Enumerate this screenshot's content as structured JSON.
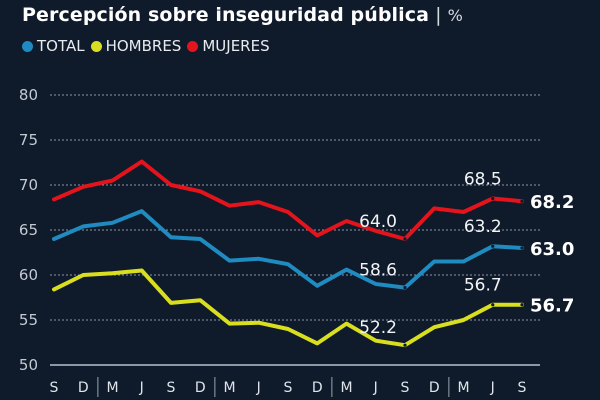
{
  "chart_data": {
    "type": "line",
    "title": "Percepción sobre inseguridad pública",
    "title_separator": "|",
    "unit": "%",
    "xlabel": "",
    "ylabel": "",
    "ylim": [
      50,
      80
    ],
    "yticks": [
      50,
      55,
      60,
      65,
      70,
      75,
      80
    ],
    "grid": true,
    "legend_position": "top-left",
    "categories": [
      "S",
      "D",
      "M",
      "J",
      "S",
      "D",
      "M",
      "J",
      "S",
      "D",
      "M",
      "J",
      "S",
      "D",
      "M",
      "J",
      "S"
    ],
    "year_separators_before_index": [
      2,
      6,
      10,
      14
    ],
    "series": [
      {
        "name": "TOTAL",
        "color": "#1f8bc0",
        "values": [
          64.0,
          65.4,
          65.8,
          67.1,
          64.2,
          64.0,
          61.6,
          61.8,
          61.2,
          58.8,
          60.6,
          59.0,
          58.6,
          61.5,
          61.5,
          63.2,
          63.0
        ]
      },
      {
        "name": "HOMBRES",
        "color": "#d9df1f",
        "values": [
          58.4,
          60.0,
          60.2,
          60.5,
          56.9,
          57.2,
          54.6,
          54.7,
          54.0,
          52.4,
          54.6,
          52.7,
          52.2,
          54.2,
          55.0,
          56.7,
          56.7
        ]
      },
      {
        "name": "MUJERES",
        "color": "#e3141b",
        "values": [
          68.4,
          69.8,
          70.5,
          72.6,
          70.0,
          69.3,
          67.7,
          68.1,
          67.0,
          64.4,
          66.0,
          64.9,
          64.0,
          67.4,
          67.0,
          68.5,
          68.2
        ]
      }
    ],
    "annotations": [
      {
        "series": "MUJERES",
        "index": 12,
        "text": "64.0"
      },
      {
        "series": "MUJERES",
        "index": 15,
        "text": "68.5"
      },
      {
        "series": "TOTAL",
        "index": 12,
        "text": "58.6"
      },
      {
        "series": "TOTAL",
        "index": 15,
        "text": "63.2"
      },
      {
        "series": "HOMBRES",
        "index": 12,
        "text": "52.2"
      },
      {
        "series": "HOMBRES",
        "index": 15,
        "text": "56.7"
      }
    ],
    "end_labels": [
      {
        "series": "MUJERES",
        "text": "68.2"
      },
      {
        "series": "TOTAL",
        "text": "63.0"
      },
      {
        "series": "HOMBRES",
        "text": "56.7"
      }
    ]
  },
  "header": {
    "title": "Percepción sobre inseguridad pública",
    "separator": "|",
    "unit": "%"
  },
  "legend": [
    {
      "label": "TOTAL",
      "color": "#1f8bc0"
    },
    {
      "label": "HOMBRES",
      "color": "#d9df1f"
    },
    {
      "label": "MUJERES",
      "color": "#e3141b"
    }
  ],
  "colors": {
    "background": "#0f1a2a",
    "gridline": "#8d97a6",
    "axis": "#b9c1cc"
  }
}
